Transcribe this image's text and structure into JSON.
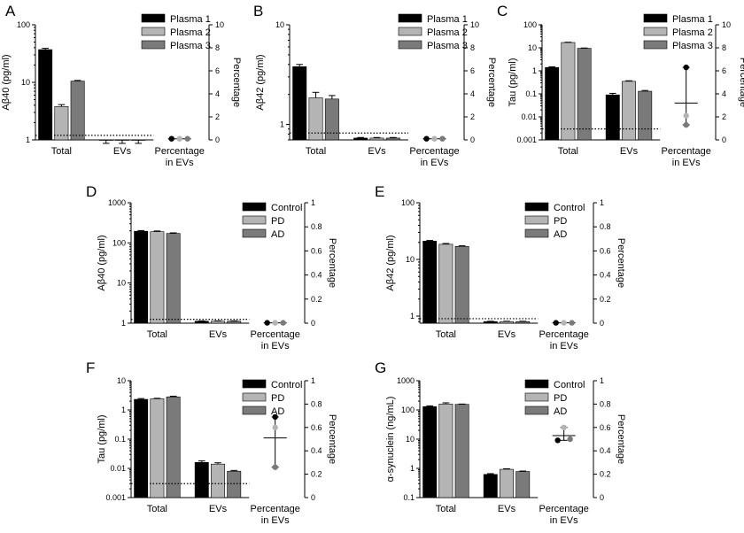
{
  "colors": {
    "s1": "#000000",
    "s2": "#b4b4b4",
    "s3": "#7a7a7a"
  },
  "chart_data": [
    {
      "panel": "A",
      "type": "bar",
      "categories": [
        "Total",
        "EVs"
      ],
      "right_category": "Percentage in EVs",
      "right_category_lines": [
        "Percentage",
        "in EVs"
      ],
      "ylabel": "Aβ40 (pg/ml)",
      "yscale": "log",
      "ylim": [
        1,
        100
      ],
      "yticks": [
        "1",
        "10",
        "100"
      ],
      "y2label": "Percentage",
      "y2lim": [
        0,
        10
      ],
      "y2ticks": [
        "0",
        "2",
        "4",
        "6",
        "8",
        "10"
      ],
      "legend": [
        "Plasma 1",
        "Plasma 2",
        "Plasma 3"
      ],
      "series": [
        {
          "name": "Plasma 1",
          "values": [
            37,
            0.85
          ],
          "errors": [
            2,
            0.02
          ]
        },
        {
          "name": "Plasma 2",
          "values": [
            3.8,
            0.85
          ],
          "errors": [
            0.3,
            0.02
          ]
        },
        {
          "name": "Plasma 3",
          "values": [
            10.5,
            0.85
          ],
          "errors": [
            0.3,
            0.02
          ]
        }
      ],
      "dotted_line": 1.2,
      "percentage": {
        "points": [
          0.1,
          0.1,
          0.1
        ],
        "mean": 0.1,
        "err": [
          0.1,
          0.1
        ]
      }
    },
    {
      "panel": "B",
      "type": "bar",
      "categories": [
        "Total",
        "EVs"
      ],
      "right_category": "Percentage in EVs",
      "right_category_lines": [
        "Percentage",
        "in EVs"
      ],
      "ylabel": "Aβ42 (pg/ml)",
      "yscale": "log",
      "ylim": [
        0.7,
        10
      ],
      "yticks": [
        "1",
        "10"
      ],
      "y2label": "Percentage",
      "y2lim": [
        0,
        10
      ],
      "y2ticks": [
        "0",
        "2",
        "4",
        "6",
        "8",
        "10"
      ],
      "legend": [
        "Plasma 1",
        "Plasma 2",
        "Plasma 3"
      ],
      "series": [
        {
          "name": "Plasma 1",
          "values": [
            3.8,
            0.73
          ],
          "errors": [
            0.2,
            0.01
          ]
        },
        {
          "name": "Plasma 2",
          "values": [
            1.85,
            0.73
          ],
          "errors": [
            0.25,
            0.01
          ]
        },
        {
          "name": "Plasma 3",
          "values": [
            1.8,
            0.73
          ],
          "errors": [
            0.15,
            0.01
          ]
        }
      ],
      "dotted_line": 0.82,
      "percentage": {
        "points": [
          0.1,
          0.1,
          0.1
        ],
        "mean": 0.1,
        "err": [
          0.1,
          0.1
        ]
      }
    },
    {
      "panel": "C",
      "type": "bar",
      "categories": [
        "Total",
        "EVs"
      ],
      "right_category": "Percentage in EVs",
      "right_category_lines": [
        "Percentage",
        "in EVs"
      ],
      "ylabel": "Tau (pg/ml)",
      "yscale": "log",
      "ylim": [
        0.001,
        100
      ],
      "yticks": [
        "0.001",
        "0.01",
        "0.1",
        "1",
        "10",
        "100"
      ],
      "y2label": "Percentage",
      "y2lim": [
        0,
        10
      ],
      "y2ticks": [
        "0",
        "2",
        "4",
        "6",
        "8",
        "10"
      ],
      "legend": [
        "Plasma 1",
        "Plasma 2",
        "Plasma 3"
      ],
      "series": [
        {
          "name": "Plasma 1",
          "values": [
            1.4,
            0.09
          ],
          "errors": [
            0.1,
            0.015
          ]
        },
        {
          "name": "Plasma 2",
          "values": [
            17,
            0.35
          ],
          "errors": [
            0.5,
            0.02
          ]
        },
        {
          "name": "Plasma 3",
          "values": [
            9.5,
            0.13
          ],
          "errors": [
            0.3,
            0.01
          ]
        }
      ],
      "dotted_line": 0.003,
      "percentage": {
        "points": [
          6.3,
          2.1,
          1.3
        ],
        "mean": 3.2,
        "err": [
          1.3,
          6.3
        ]
      }
    },
    {
      "panel": "D",
      "type": "bar",
      "categories": [
        "Total",
        "EVs"
      ],
      "right_category": "Percentage in EVs",
      "right_category_lines": [
        "Percentage",
        "in EVs"
      ],
      "ylabel": "Aβ40 (pg/ml)",
      "yscale": "log",
      "ylim": [
        1,
        1000
      ],
      "yticks": [
        "1",
        "10",
        "100",
        "1000"
      ],
      "y2label": "Percentage",
      "y2lim": [
        0,
        1
      ],
      "y2ticks": [
        "0",
        "0.2",
        "0.4",
        "0.6",
        "0.8",
        "1"
      ],
      "legend": [
        "Control",
        "PD",
        "AD"
      ],
      "series": [
        {
          "name": "Control",
          "values": [
            195,
            1.12
          ],
          "errors": [
            8,
            0.02
          ]
        },
        {
          "name": "PD",
          "values": [
            190,
            1.12
          ],
          "errors": [
            8,
            0.02
          ]
        },
        {
          "name": "AD",
          "values": [
            172,
            1.12
          ],
          "errors": [
            6,
            0.02
          ]
        }
      ],
      "dotted_line": 1.25,
      "percentage": {
        "points": [
          0.003,
          0.003,
          0.003
        ],
        "mean": 0.003,
        "err": [
          0.003,
          0.003
        ]
      }
    },
    {
      "panel": "E",
      "type": "bar",
      "categories": [
        "Total",
        "EVs"
      ],
      "right_category": "Percentage in EVs",
      "right_category_lines": [
        "Percentage",
        "in EVs"
      ],
      "ylabel": "Aβ42 (pg/ml)",
      "yscale": "log",
      "ylim": [
        0.75,
        100
      ],
      "yticks": [
        "1",
        "10",
        "100"
      ],
      "y2label": "Percentage",
      "y2lim": [
        0,
        1
      ],
      "y2ticks": [
        "0",
        "0.2",
        "0.4",
        "0.6",
        "0.8",
        "1"
      ],
      "legend": [
        "Control",
        "PD",
        "AD"
      ],
      "series": [
        {
          "name": "Control",
          "values": [
            21,
            0.8
          ],
          "errors": [
            0.6,
            0.01
          ]
        },
        {
          "name": "PD",
          "values": [
            18.5,
            0.8
          ],
          "errors": [
            0.6,
            0.01
          ]
        },
        {
          "name": "AD",
          "values": [
            17,
            0.8
          ],
          "errors": [
            0.4,
            0.01
          ]
        }
      ],
      "dotted_line": 0.9,
      "percentage": {
        "points": [
          0.003,
          0.003,
          0.003
        ],
        "mean": 0.003,
        "err": [
          0.003,
          0.003
        ]
      }
    },
    {
      "panel": "F",
      "type": "bar",
      "categories": [
        "Total",
        "EVs"
      ],
      "right_category": "Percentage in EVs",
      "right_category_lines": [
        "Percentage",
        "in EVs"
      ],
      "ylabel": "Tau (pg/ml)",
      "yscale": "log",
      "ylim": [
        0.001,
        10
      ],
      "yticks": [
        "0.001",
        "0.01",
        "0.1",
        "1",
        "10"
      ],
      "y2label": "Percentage",
      "y2lim": [
        0,
        1
      ],
      "y2ticks": [
        "0",
        "0.2",
        "0.4",
        "0.6",
        "0.8",
        "1"
      ],
      "legend": [
        "Control",
        "PD",
        "AD"
      ],
      "series": [
        {
          "name": "Control",
          "values": [
            2.3,
            0.016
          ],
          "errors": [
            0.15,
            0.002
          ]
        },
        {
          "name": "PD",
          "values": [
            2.4,
            0.014
          ],
          "errors": [
            0.1,
            0.0015
          ]
        },
        {
          "name": "AD",
          "values": [
            2.8,
            0.008
          ],
          "errors": [
            0.15,
            0.0005
          ]
        }
      ],
      "dotted_line": 0.003,
      "percentage": {
        "points": [
          0.69,
          0.6,
          0.26
        ],
        "mean": 0.51,
        "err": [
          0.26,
          0.69
        ]
      }
    },
    {
      "panel": "G",
      "type": "bar",
      "categories": [
        "Total",
        "EVs"
      ],
      "right_category": "Percentage in EVs",
      "right_category_lines": [
        "Percentage",
        "in EVs"
      ],
      "ylabel": "α-synuclein (ng/mL)",
      "yscale": "log",
      "ylim": [
        0.1,
        1000
      ],
      "yticks": [
        "0.1",
        "1",
        "10",
        "100",
        "1000"
      ],
      "y2label": "Percentage",
      "y2lim": [
        0,
        1
      ],
      "y2ticks": [
        "0",
        "0.2",
        "0.4",
        "0.6",
        "0.8",
        "1"
      ],
      "legend": [
        "Control",
        "PD",
        "AD"
      ],
      "series": [
        {
          "name": "Control",
          "values": [
            130,
            0.62
          ],
          "errors": [
            8,
            0.04
          ]
        },
        {
          "name": "PD",
          "values": [
            160,
            0.93
          ],
          "errors": [
            15,
            0.04
          ]
        },
        {
          "name": "AD",
          "values": [
            155,
            0.78
          ],
          "errors": [
            4,
            0.03
          ]
        }
      ],
      "dotted_line": null,
      "percentage": {
        "points": [
          0.49,
          0.6,
          0.5
        ],
        "mean": 0.53,
        "err": [
          0.49,
          0.6
        ]
      }
    }
  ]
}
